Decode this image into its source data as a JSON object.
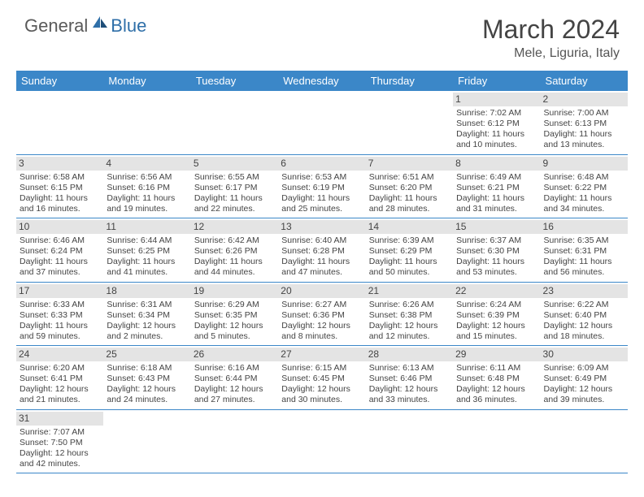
{
  "logo": {
    "text1": "General",
    "text2": "Blue"
  },
  "title": "March 2024",
  "location": "Mele, Liguria, Italy",
  "colors": {
    "header_bg": "#3b87c8",
    "header_text": "#ffffff",
    "daynum_bg": "#e4e4e4",
    "text": "#444444",
    "row_border": "#3b87c8",
    "logo_gray": "#5a5a5a",
    "logo_blue": "#2f6fa8",
    "background": "#ffffff"
  },
  "typography": {
    "title_fontsize": 32,
    "location_fontsize": 16,
    "weekday_fontsize": 13,
    "daynum_fontsize": 12,
    "body_fontsize": 10.5,
    "font_family": "Arial"
  },
  "weekdays": [
    "Sunday",
    "Monday",
    "Tuesday",
    "Wednesday",
    "Thursday",
    "Friday",
    "Saturday"
  ],
  "weeks": [
    [
      {
        "n": "",
        "sr": "",
        "ss": "",
        "dl": ""
      },
      {
        "n": "",
        "sr": "",
        "ss": "",
        "dl": ""
      },
      {
        "n": "",
        "sr": "",
        "ss": "",
        "dl": ""
      },
      {
        "n": "",
        "sr": "",
        "ss": "",
        "dl": ""
      },
      {
        "n": "",
        "sr": "",
        "ss": "",
        "dl": ""
      },
      {
        "n": "1",
        "sr": "Sunrise: 7:02 AM",
        "ss": "Sunset: 6:12 PM",
        "dl": "Daylight: 11 hours and 10 minutes."
      },
      {
        "n": "2",
        "sr": "Sunrise: 7:00 AM",
        "ss": "Sunset: 6:13 PM",
        "dl": "Daylight: 11 hours and 13 minutes."
      }
    ],
    [
      {
        "n": "3",
        "sr": "Sunrise: 6:58 AM",
        "ss": "Sunset: 6:15 PM",
        "dl": "Daylight: 11 hours and 16 minutes."
      },
      {
        "n": "4",
        "sr": "Sunrise: 6:56 AM",
        "ss": "Sunset: 6:16 PM",
        "dl": "Daylight: 11 hours and 19 minutes."
      },
      {
        "n": "5",
        "sr": "Sunrise: 6:55 AM",
        "ss": "Sunset: 6:17 PM",
        "dl": "Daylight: 11 hours and 22 minutes."
      },
      {
        "n": "6",
        "sr": "Sunrise: 6:53 AM",
        "ss": "Sunset: 6:19 PM",
        "dl": "Daylight: 11 hours and 25 minutes."
      },
      {
        "n": "7",
        "sr": "Sunrise: 6:51 AM",
        "ss": "Sunset: 6:20 PM",
        "dl": "Daylight: 11 hours and 28 minutes."
      },
      {
        "n": "8",
        "sr": "Sunrise: 6:49 AM",
        "ss": "Sunset: 6:21 PM",
        "dl": "Daylight: 11 hours and 31 minutes."
      },
      {
        "n": "9",
        "sr": "Sunrise: 6:48 AM",
        "ss": "Sunset: 6:22 PM",
        "dl": "Daylight: 11 hours and 34 minutes."
      }
    ],
    [
      {
        "n": "10",
        "sr": "Sunrise: 6:46 AM",
        "ss": "Sunset: 6:24 PM",
        "dl": "Daylight: 11 hours and 37 minutes."
      },
      {
        "n": "11",
        "sr": "Sunrise: 6:44 AM",
        "ss": "Sunset: 6:25 PM",
        "dl": "Daylight: 11 hours and 41 minutes."
      },
      {
        "n": "12",
        "sr": "Sunrise: 6:42 AM",
        "ss": "Sunset: 6:26 PM",
        "dl": "Daylight: 11 hours and 44 minutes."
      },
      {
        "n": "13",
        "sr": "Sunrise: 6:40 AM",
        "ss": "Sunset: 6:28 PM",
        "dl": "Daylight: 11 hours and 47 minutes."
      },
      {
        "n": "14",
        "sr": "Sunrise: 6:39 AM",
        "ss": "Sunset: 6:29 PM",
        "dl": "Daylight: 11 hours and 50 minutes."
      },
      {
        "n": "15",
        "sr": "Sunrise: 6:37 AM",
        "ss": "Sunset: 6:30 PM",
        "dl": "Daylight: 11 hours and 53 minutes."
      },
      {
        "n": "16",
        "sr": "Sunrise: 6:35 AM",
        "ss": "Sunset: 6:31 PM",
        "dl": "Daylight: 11 hours and 56 minutes."
      }
    ],
    [
      {
        "n": "17",
        "sr": "Sunrise: 6:33 AM",
        "ss": "Sunset: 6:33 PM",
        "dl": "Daylight: 11 hours and 59 minutes."
      },
      {
        "n": "18",
        "sr": "Sunrise: 6:31 AM",
        "ss": "Sunset: 6:34 PM",
        "dl": "Daylight: 12 hours and 2 minutes."
      },
      {
        "n": "19",
        "sr": "Sunrise: 6:29 AM",
        "ss": "Sunset: 6:35 PM",
        "dl": "Daylight: 12 hours and 5 minutes."
      },
      {
        "n": "20",
        "sr": "Sunrise: 6:27 AM",
        "ss": "Sunset: 6:36 PM",
        "dl": "Daylight: 12 hours and 8 minutes."
      },
      {
        "n": "21",
        "sr": "Sunrise: 6:26 AM",
        "ss": "Sunset: 6:38 PM",
        "dl": "Daylight: 12 hours and 12 minutes."
      },
      {
        "n": "22",
        "sr": "Sunrise: 6:24 AM",
        "ss": "Sunset: 6:39 PM",
        "dl": "Daylight: 12 hours and 15 minutes."
      },
      {
        "n": "23",
        "sr": "Sunrise: 6:22 AM",
        "ss": "Sunset: 6:40 PM",
        "dl": "Daylight: 12 hours and 18 minutes."
      }
    ],
    [
      {
        "n": "24",
        "sr": "Sunrise: 6:20 AM",
        "ss": "Sunset: 6:41 PM",
        "dl": "Daylight: 12 hours and 21 minutes."
      },
      {
        "n": "25",
        "sr": "Sunrise: 6:18 AM",
        "ss": "Sunset: 6:43 PM",
        "dl": "Daylight: 12 hours and 24 minutes."
      },
      {
        "n": "26",
        "sr": "Sunrise: 6:16 AM",
        "ss": "Sunset: 6:44 PM",
        "dl": "Daylight: 12 hours and 27 minutes."
      },
      {
        "n": "27",
        "sr": "Sunrise: 6:15 AM",
        "ss": "Sunset: 6:45 PM",
        "dl": "Daylight: 12 hours and 30 minutes."
      },
      {
        "n": "28",
        "sr": "Sunrise: 6:13 AM",
        "ss": "Sunset: 6:46 PM",
        "dl": "Daylight: 12 hours and 33 minutes."
      },
      {
        "n": "29",
        "sr": "Sunrise: 6:11 AM",
        "ss": "Sunset: 6:48 PM",
        "dl": "Daylight: 12 hours and 36 minutes."
      },
      {
        "n": "30",
        "sr": "Sunrise: 6:09 AM",
        "ss": "Sunset: 6:49 PM",
        "dl": "Daylight: 12 hours and 39 minutes."
      }
    ],
    [
      {
        "n": "31",
        "sr": "Sunrise: 7:07 AM",
        "ss": "Sunset: 7:50 PM",
        "dl": "Daylight: 12 hours and 42 minutes."
      },
      {
        "n": "",
        "sr": "",
        "ss": "",
        "dl": ""
      },
      {
        "n": "",
        "sr": "",
        "ss": "",
        "dl": ""
      },
      {
        "n": "",
        "sr": "",
        "ss": "",
        "dl": ""
      },
      {
        "n": "",
        "sr": "",
        "ss": "",
        "dl": ""
      },
      {
        "n": "",
        "sr": "",
        "ss": "",
        "dl": ""
      },
      {
        "n": "",
        "sr": "",
        "ss": "",
        "dl": ""
      }
    ]
  ]
}
